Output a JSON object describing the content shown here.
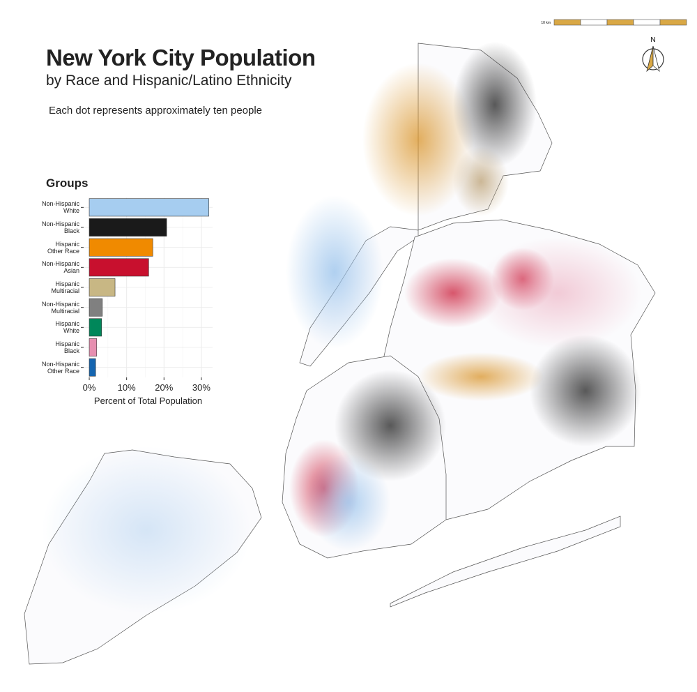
{
  "title": "New York City Population",
  "subtitle": "by Race and Hispanic/Latino Ethnicity",
  "note": "Each dot represents approximately ten people",
  "scale_label": "10 km",
  "north_label": "N",
  "chart_data": {
    "type": "bar",
    "orientation": "horizontal",
    "title": "Groups",
    "categories": [
      "Non-Hispanic\nWhite",
      "Non-Hispanic\nBlack",
      "Hispanic\nOther Race",
      "Non-Hispanic\nAsian",
      "Hispanic\nMultiracial",
      "Non-Hispanic\nMultiracial",
      "Hispanic\nWhite",
      "Hispanic\nBlack",
      "Non-Hispanic\nOther Race"
    ],
    "values": [
      32.0,
      20.7,
      17.0,
      15.9,
      6.9,
      3.5,
      3.3,
      2.0,
      1.7
    ],
    "colors": [
      "#a6cdf0",
      "#1a1a1a",
      "#f08a00",
      "#c8102e",
      "#c8b784",
      "#808080",
      "#00875a",
      "#e68fb0",
      "#1565b0"
    ],
    "xlabel": "Percent of Total Population",
    "xlim": [
      -1.5,
      33
    ],
    "xticks": [
      {
        "value": 0,
        "label": "0%"
      },
      {
        "value": 10,
        "label": "10%"
      },
      {
        "value": 20,
        "label": "20%"
      },
      {
        "value": 30,
        "label": "30%"
      }
    ],
    "grid": true
  }
}
